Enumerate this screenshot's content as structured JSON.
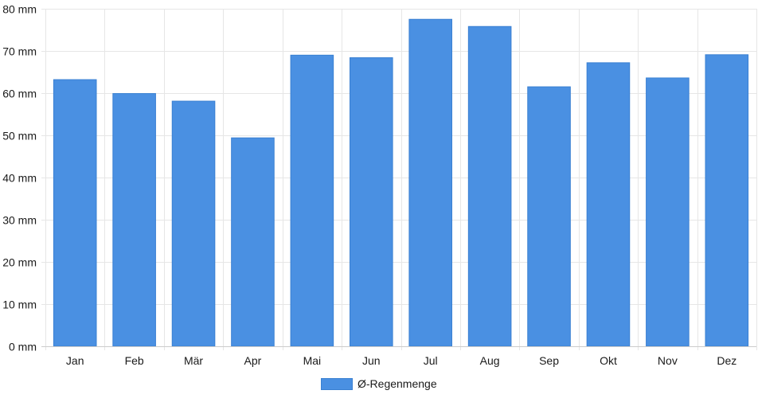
{
  "chart_data": {
    "type": "bar",
    "categories": [
      "Jan",
      "Feb",
      "Mär",
      "Apr",
      "Mai",
      "Jun",
      "Jul",
      "Aug",
      "Sep",
      "Okt",
      "Nov",
      "Dez"
    ],
    "series": [
      {
        "name": "Ø-Regenmenge",
        "values": [
          63.2,
          59.9,
          58.1,
          49.4,
          69.0,
          68.4,
          77.5,
          75.8,
          61.5,
          67.2,
          63.6,
          69.1
        ],
        "color": "#4a90e2"
      }
    ],
    "yticks": [
      "0 mm",
      "10 mm",
      "20 mm",
      "30 mm",
      "40 mm",
      "50 mm",
      "60 mm",
      "70 mm",
      "80 mm"
    ],
    "ylim": [
      0,
      80
    ],
    "grid": true,
    "legend_position": "bottom-center"
  },
  "colors": {
    "bar": "#4a90e2",
    "bar_border": "#3a80d2",
    "grid": "#e6e6e6",
    "axis": "#cccccc"
  },
  "legend": {
    "label": "Ø-Regenmenge"
  }
}
